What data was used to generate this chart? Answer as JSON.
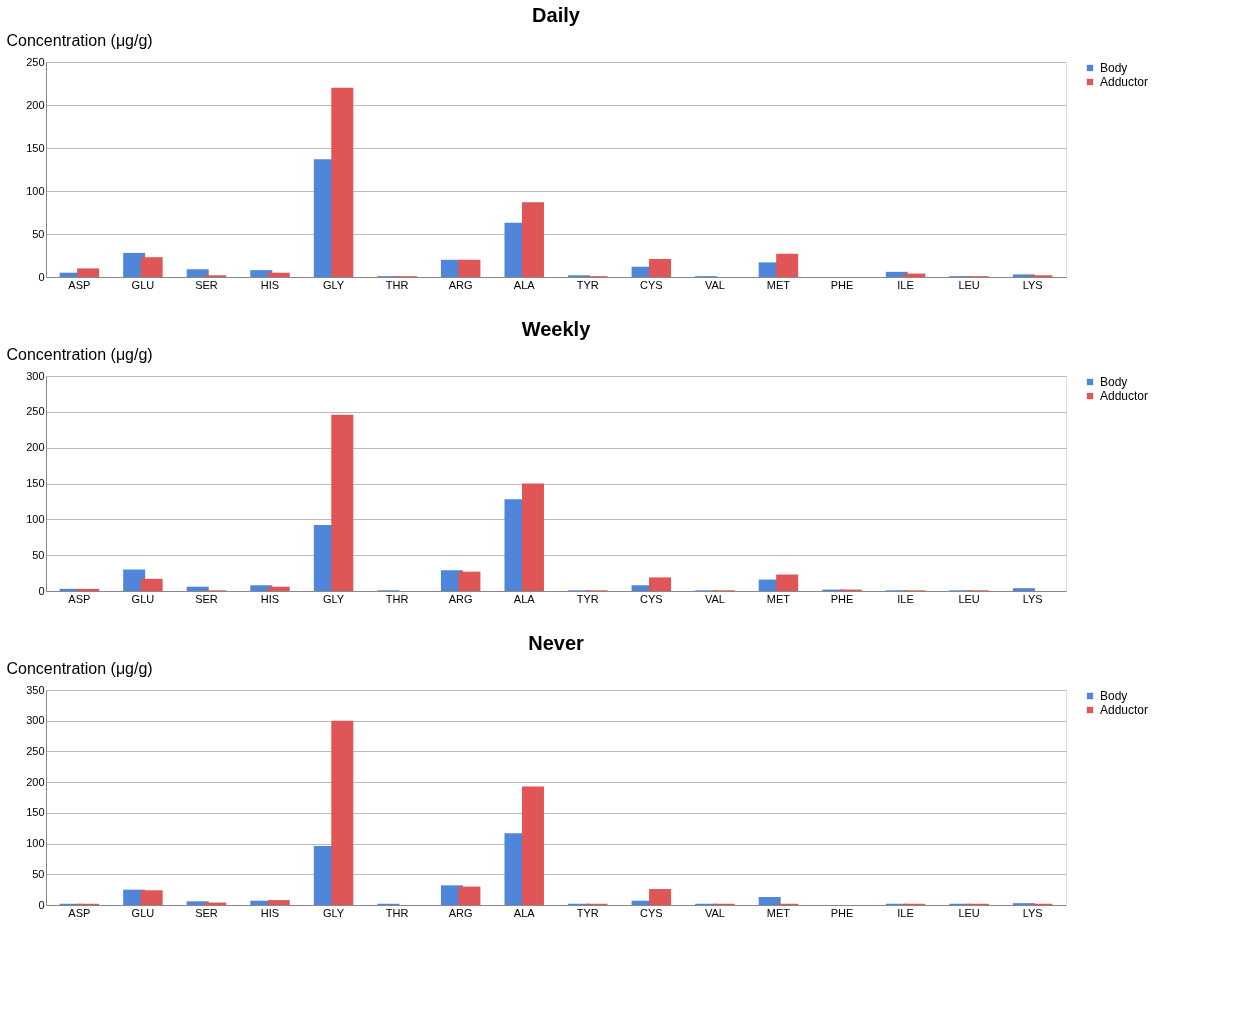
{
  "chart_data": [
    {
      "type": "bar",
      "title": "Daily",
      "ylabel": "Concentration (μg/g)",
      "categories": [
        "ASP",
        "GLU",
        "SER",
        "HIS",
        "GLY",
        "THR",
        "ARG",
        "ALA",
        "TYR",
        "CYS",
        "VAL",
        "MET",
        "PHE",
        "ILE",
        "LEU",
        "LYS"
      ],
      "series": [
        {
          "name": "Body",
          "color": "#4f86d9",
          "values": [
            5,
            28,
            9,
            8,
            137,
            1,
            20,
            63,
            2,
            12,
            1,
            17,
            0,
            6,
            1,
            3
          ]
        },
        {
          "name": "Adductor",
          "color": "#e05555",
          "values": [
            10,
            23,
            2,
            5,
            220,
            1,
            20,
            87,
            1,
            21,
            0,
            27,
            0,
            4,
            1,
            2
          ]
        }
      ],
      "ylim": [
        0,
        250
      ],
      "yticks": [
        0,
        50,
        100,
        150,
        200,
        250
      ],
      "grid": "y",
      "legend": "right"
    },
    {
      "type": "bar",
      "title": "Weekly",
      "ylabel": "Concentration (μg/g)",
      "categories": [
        "ASP",
        "GLU",
        "SER",
        "HIS",
        "GLY",
        "THR",
        "ARG",
        "ALA",
        "TYR",
        "CYS",
        "VAL",
        "MET",
        "PHE",
        "ILE",
        "LEU",
        "LYS"
      ],
      "series": [
        {
          "name": "Body",
          "color": "#4f86d9",
          "values": [
            3,
            30,
            6,
            8,
            92,
            1,
            29,
            128,
            1,
            8,
            1,
            16,
            2,
            1,
            1,
            4
          ]
        },
        {
          "name": "Adductor",
          "color": "#e05555",
          "values": [
            3,
            17,
            1,
            6,
            246,
            0,
            27,
            150,
            1,
            19,
            1,
            23,
            2,
            1,
            1,
            0
          ]
        }
      ],
      "ylim": [
        0,
        300
      ],
      "yticks": [
        0,
        50,
        100,
        150,
        200,
        250,
        300
      ],
      "grid": "y",
      "legend": "right"
    },
    {
      "type": "bar",
      "title": "Never",
      "ylabel": "Concentration (μg/g)",
      "categories": [
        "ASP",
        "GLU",
        "SER",
        "HIS",
        "GLY",
        "THR",
        "ARG",
        "ALA",
        "TYR",
        "CYS",
        "VAL",
        "MET",
        "PHE",
        "ILE",
        "LEU",
        "LYS"
      ],
      "series": [
        {
          "name": "Body",
          "color": "#4f86d9",
          "values": [
            2,
            25,
            6,
            7,
            96,
            2,
            32,
            117,
            2,
            7,
            2,
            13,
            0,
            2,
            2,
            3
          ]
        },
        {
          "name": "Adductor",
          "color": "#e05555",
          "values": [
            2,
            24,
            4,
            8,
            300,
            0,
            30,
            193,
            2,
            26,
            2,
            2,
            0,
            2,
            2,
            2
          ]
        }
      ],
      "ylim": [
        0,
        350
      ],
      "yticks": [
        0,
        50,
        100,
        150,
        200,
        250,
        300,
        350
      ],
      "grid": "y",
      "legend": "right"
    }
  ]
}
